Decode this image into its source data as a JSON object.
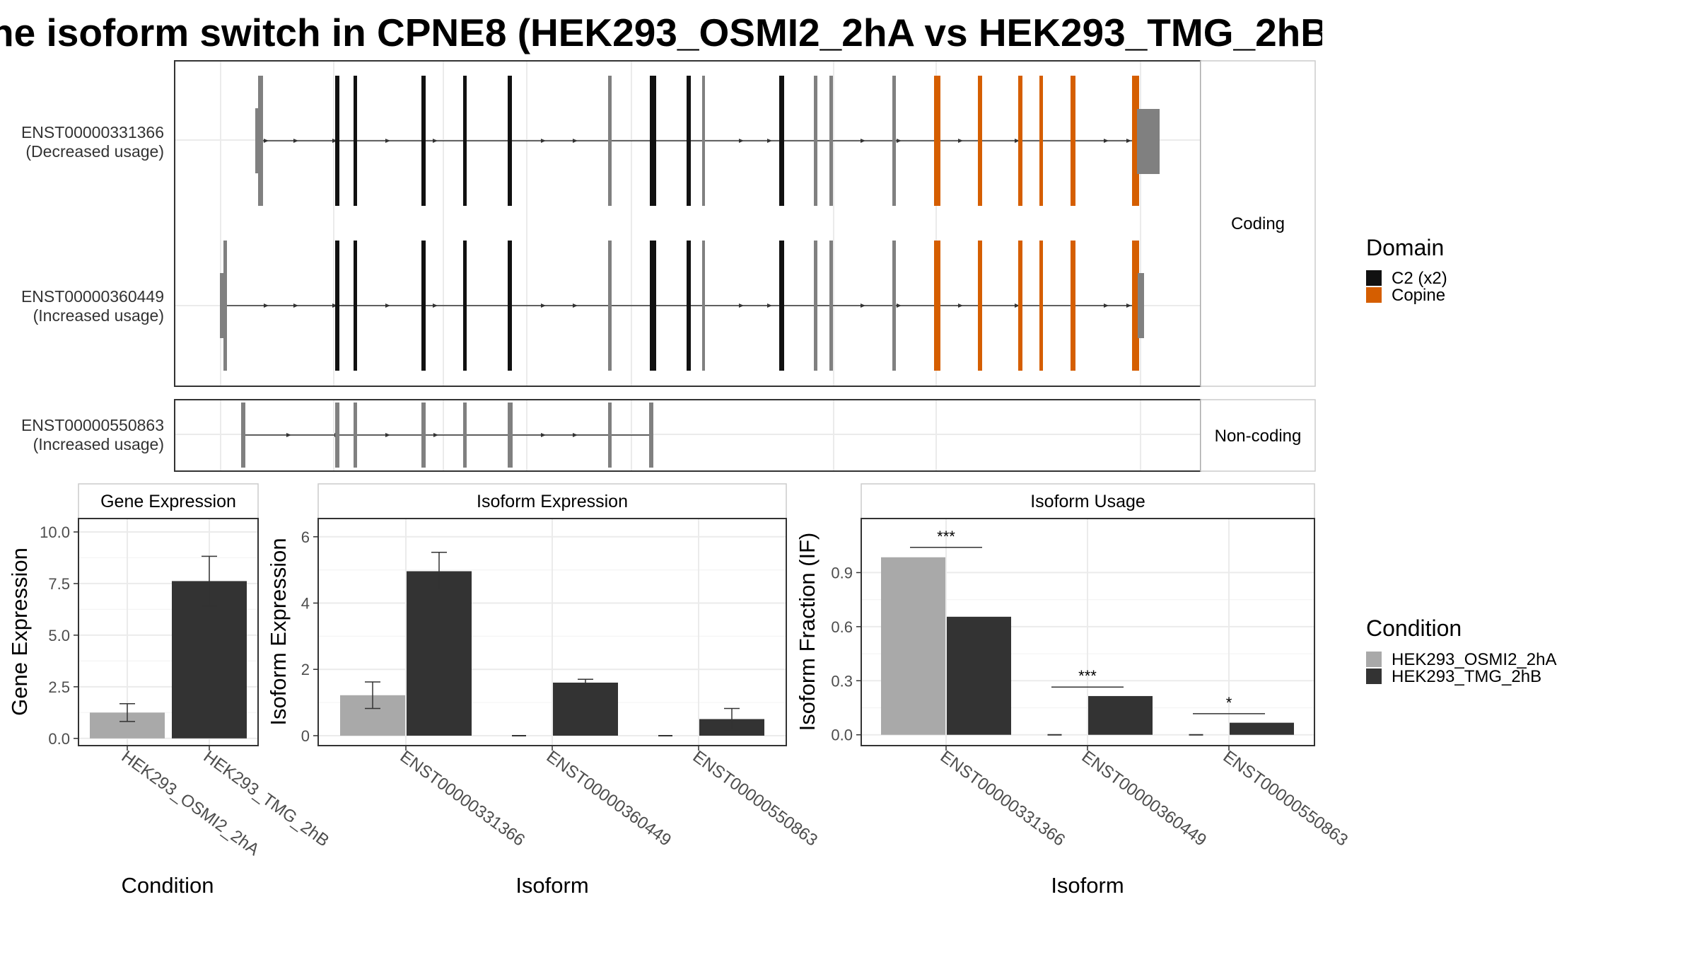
{
  "title": "he isoform switch in CPNE8 (HEK293_OSMI2_2hA vs HEK293_TMG_2hB",
  "colors": {
    "condition_A": "#a9a9a9",
    "condition_B": "#333333",
    "domain_C2": "#111111",
    "domain_Copine": "#d55e00",
    "utr": "#808080",
    "panel_border": "#333333",
    "grid": "#ebebeb"
  },
  "structure": {
    "strip_labels": [
      "Coding",
      "Non-coding"
    ],
    "transcripts": [
      {
        "id": "ENST00000331366",
        "usage": "(Decreased usage)",
        "group": "Coding"
      },
      {
        "id": "ENST00000360449",
        "usage": "(Increased usage)",
        "group": "Coding"
      },
      {
        "id": "ENST00000550863",
        "usage": "(Increased usage)",
        "group": "Non-coding"
      }
    ]
  },
  "legends": {
    "domain": {
      "title": "Domain",
      "items": [
        "C2 (x2)",
        "Copine"
      ]
    },
    "condition": {
      "title": "Condition",
      "items": [
        "HEK293_OSMI2_2hA",
        "HEK293_TMG_2hB"
      ]
    }
  },
  "chart_data": [
    {
      "type": "bar",
      "title": "Gene Expression",
      "xlabel": "Condition",
      "ylabel": "Gene Expression",
      "categories": [
        "HEK293_OSMI2_2hA",
        "HEK293_TMG_2hB"
      ],
      "values": [
        1.25,
        7.62
      ],
      "error": [
        [
          0.82,
          1.68
        ],
        [
          6.42,
          8.82
        ]
      ],
      "ylim": [
        -0.35,
        10.65
      ],
      "yticks": [
        "0.0",
        "2.5",
        "5.0",
        "7.5",
        "10.0"
      ]
    },
    {
      "type": "bar",
      "title": "Isoform Expression",
      "xlabel": "Isoform",
      "ylabel": "Isoform Expression",
      "categories": [
        "ENST00000331366",
        "ENST00000360449",
        "ENST00000550863"
      ],
      "series": [
        {
          "name": "HEK293_OSMI2_2hA",
          "values": [
            1.22,
            0.0,
            0.0
          ],
          "error": [
            [
              0.82,
              1.62
            ],
            [
              0.0,
              0.0
            ],
            [
              0.0,
              0.0
            ]
          ]
        },
        {
          "name": "HEK293_TMG_2hB",
          "values": [
            4.96,
            1.6,
            0.5
          ],
          "error": [
            [
              4.39,
              5.53
            ],
            [
              1.5,
              1.7
            ],
            [
              0.18,
              0.82
            ]
          ]
        }
      ],
      "ylim": [
        -0.3,
        6.55
      ],
      "yticks": [
        "0",
        "2",
        "4",
        "6"
      ]
    },
    {
      "type": "bar",
      "title": "Isoform Usage",
      "xlabel": "Isoform",
      "ylabel": "Isoform Fraction (IF)",
      "categories": [
        "ENST00000331366",
        "ENST00000360449",
        "ENST00000550863"
      ],
      "series": [
        {
          "name": "HEK293_OSMI2_2hA",
          "values": [
            0.985,
            0.0,
            0.0
          ]
        },
        {
          "name": "HEK293_TMG_2hB",
          "values": [
            0.655,
            0.215,
            0.067
          ]
        }
      ],
      "significance": [
        "***",
        "***",
        "*"
      ],
      "significance_y": [
        1.04,
        0.265,
        0.117
      ],
      "ylim": [
        -0.06,
        1.2
      ],
      "yticks": [
        "0.0",
        "0.3",
        "0.6",
        "0.9"
      ]
    }
  ]
}
